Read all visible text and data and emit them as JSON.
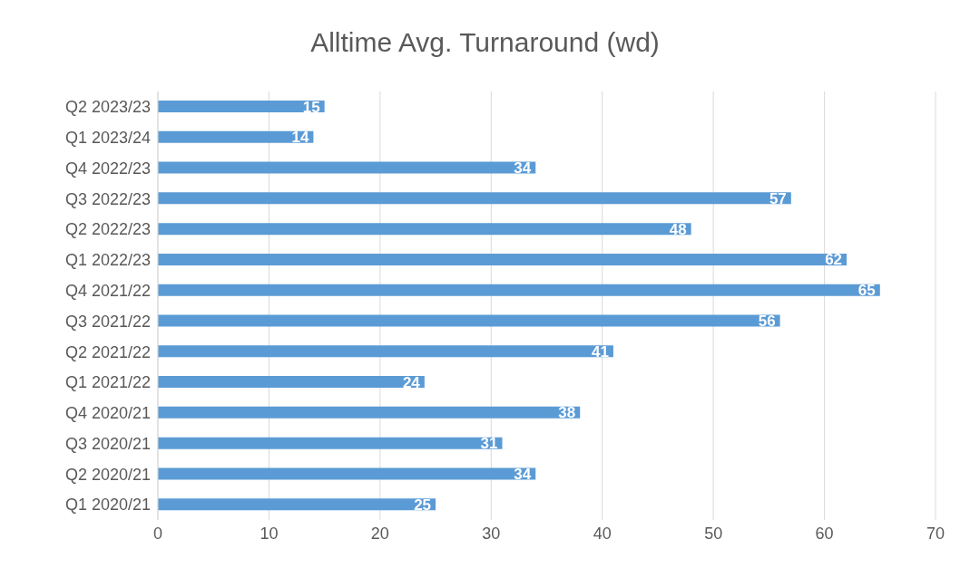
{
  "chart_data": {
    "type": "bar",
    "orientation": "horizontal",
    "title": "Alltime Avg. Turnaround (wd)",
    "categories": [
      "Q2 2023/23",
      "Q1 2023/24",
      "Q4 2022/23",
      "Q3 2022/23",
      "Q2 2022/23",
      "Q1 2022/23",
      "Q4 2021/22",
      "Q3 2021/22",
      "Q2 2021/22",
      "Q1 2021/22",
      "Q4 2020/21",
      "Q3 2020/21",
      "Q2 2020/21",
      "Q1 2020/21"
    ],
    "values": [
      15,
      14,
      34,
      57,
      48,
      62,
      65,
      56,
      41,
      24,
      38,
      31,
      34,
      25
    ],
    "color": "#5b9bd5",
    "xlim": [
      0,
      70
    ],
    "xticks": [
      0,
      10,
      20,
      30,
      40,
      50,
      60,
      70
    ],
    "grid": "x",
    "data_labels": true,
    "legend": false
  }
}
